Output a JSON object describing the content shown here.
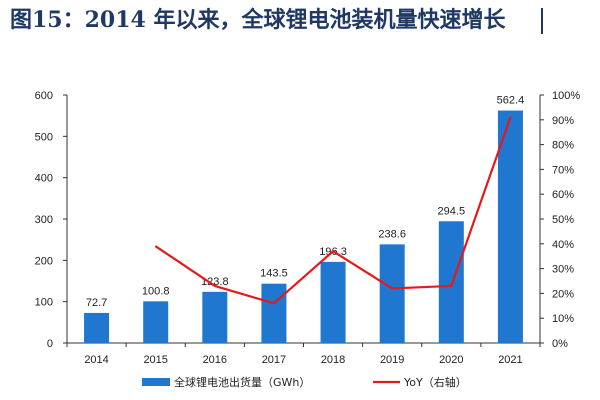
{
  "title": "图15：2014 年以来，全球锂电池装机量快速增长",
  "chart_data": {
    "type": "bar",
    "categories": [
      "2014",
      "2015",
      "2016",
      "2017",
      "2018",
      "2019",
      "2020",
      "2021"
    ],
    "series": [
      {
        "name": "全球锂电池出货量（GWh）",
        "type": "bar",
        "axis": "left",
        "color": "#1f77d0",
        "values": [
          72.7,
          100.8,
          123.8,
          143.5,
          196.3,
          238.6,
          294.5,
          562.4
        ],
        "labels": [
          "72.7",
          "100.8",
          "123.8",
          "143.5",
          "196.3",
          "238.6",
          "294.5",
          "562.4"
        ]
      },
      {
        "name": "YoY（右轴）",
        "type": "line",
        "axis": "right",
        "color": "#e31a1c",
        "values": [
          null,
          0.39,
          0.23,
          0.16,
          0.37,
          0.22,
          0.23,
          0.91
        ]
      }
    ],
    "y_left": {
      "lim": [
        0,
        600
      ],
      "ticks": [
        "0",
        "100",
        "200",
        "300",
        "400",
        "500",
        "600"
      ]
    },
    "y_right": {
      "lim": [
        0,
        1.0
      ],
      "ticks": [
        "0%",
        "10%",
        "20%",
        "30%",
        "40%",
        "50%",
        "60%",
        "70%",
        "80%",
        "90%",
        "100%"
      ]
    },
    "legend_position": "bottom",
    "grid": false
  }
}
